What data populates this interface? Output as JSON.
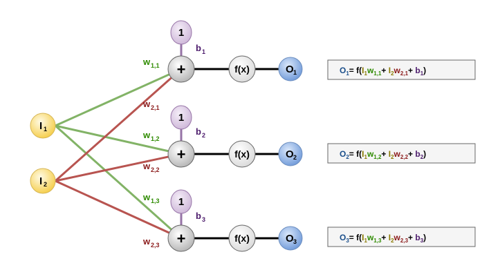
{
  "colors": {
    "green_edge": "#82b366",
    "red_edge": "#b85450",
    "green_text": "#2e8b00",
    "red_text": "#8b1a1a",
    "purple_text": "#4b1a6b",
    "blue_text": "#1a4e8a",
    "olive_text": "#8a7a00",
    "bias_fill": "#e1d5e7",
    "bias_stroke": "#9673a6",
    "input_fill": "#fff2cc",
    "input_stroke": "#d6b656",
    "output_fill": "#7ea6e0",
    "output_stroke": "#6c8ebf"
  },
  "inputs": [
    {
      "letter": "I",
      "sub": "1"
    },
    {
      "letter": "I",
      "sub": "2"
    }
  ],
  "bias_node_label": "1",
  "sum_symbol": "+",
  "activation_label": "f(x)",
  "neurons": [
    {
      "bias": {
        "letter": "b",
        "sub": "1"
      },
      "w_green": {
        "letter": "w",
        "sub": "1,1"
      },
      "w_red": {
        "letter": "w",
        "sub": "2,1"
      },
      "output": {
        "letter": "O",
        "sub": "1"
      },
      "equation": {
        "o": "O",
        "o_sub": "1",
        "eq": "= f(",
        "i1": "I",
        "i1_sub": "1",
        "w1": "w",
        "w1_sub": "1,1",
        "plus1": "+ ",
        "i2": "I",
        "i2_sub": "2",
        "w2": "w",
        "w2_sub": "2,1",
        "plus2": "+ ",
        "b": "b",
        "b_sub": "1",
        "close": ")"
      }
    },
    {
      "bias": {
        "letter": "b",
        "sub": "2"
      },
      "w_green": {
        "letter": "w",
        "sub": "1,2"
      },
      "w_red": {
        "letter": "w",
        "sub": "2,2"
      },
      "output": {
        "letter": "O",
        "sub": "2"
      },
      "equation": {
        "o": "O",
        "o_sub": "2",
        "eq": "= f(",
        "i1": "I",
        "i1_sub": "1",
        "w1": "w",
        "w1_sub": "1,2",
        "plus1": "+ ",
        "i2": "I",
        "i2_sub": "2",
        "w2": "w",
        "w2_sub": "2,2",
        "plus2": "+ ",
        "b": "b",
        "b_sub": "2",
        "close": ")"
      }
    },
    {
      "bias": {
        "letter": "b",
        "sub": "3"
      },
      "w_green": {
        "letter": "w",
        "sub": "1,3"
      },
      "w_red": {
        "letter": "w",
        "sub": "2,3"
      },
      "output": {
        "letter": "O",
        "sub": "3"
      },
      "equation": {
        "o": "O",
        "o_sub": "3",
        "eq": "= f(",
        "i1": "I",
        "i1_sub": "1",
        "w1": "w",
        "w1_sub": "1,3",
        "plus1": "+ ",
        "i2": "I",
        "i2_sub": "2",
        "w2": "w",
        "w2_sub": "2,3",
        "plus2": "+ ",
        "b": "b",
        "b_sub": "3",
        "close": ")"
      }
    }
  ]
}
